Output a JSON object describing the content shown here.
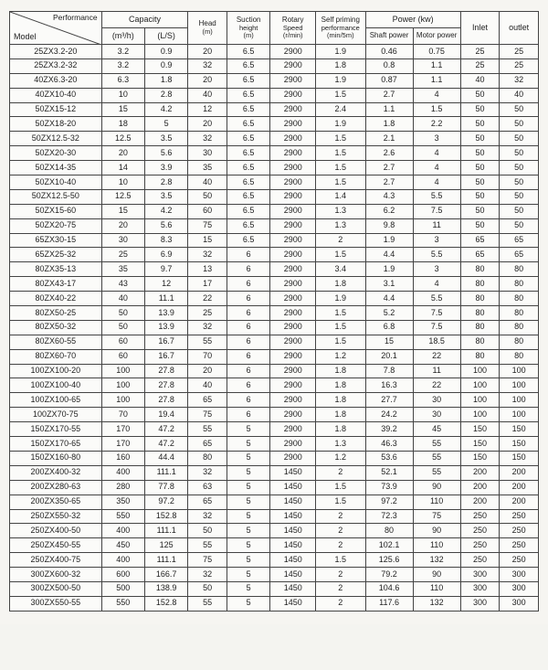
{
  "header": {
    "corner_top": "Performance",
    "corner_bottom": "Model",
    "columns_row1": {
      "capacity": "Capacity",
      "head": "Head",
      "head_unit": "(m)",
      "suction": "Suction",
      "suction_sub": "height",
      "suction_unit": "(m)",
      "rotary": "Rotary",
      "rotary_sub": "Speed",
      "rotary_unit": "(r/min)",
      "self_priming": "Self priming",
      "self_priming_sub": "performance",
      "self_priming_unit": "(min/5m)",
      "power": "Power (kw)",
      "inlet": "Inlet",
      "outlet": "outlet"
    },
    "columns_row2": {
      "cap_m3h": "(m³/h)",
      "cap_ls": "(L/S)",
      "shaft": "Shaft power",
      "motor": "Motor power"
    }
  },
  "rows": [
    {
      "model": "25ZX3.2-20",
      "m3h": "3.2",
      "ls": "0.9",
      "head": "20",
      "suc": "6.5",
      "rot": "2900",
      "self": "1.9",
      "shaft": "0.46",
      "motor": "0.75",
      "in": "25",
      "out": "25"
    },
    {
      "model": "25ZX3.2-32",
      "m3h": "3.2",
      "ls": "0.9",
      "head": "32",
      "suc": "6.5",
      "rot": "2900",
      "self": "1.8",
      "shaft": "0.8",
      "motor": "1.1",
      "in": "25",
      "out": "25"
    },
    {
      "model": "40ZX6.3-20",
      "m3h": "6.3",
      "ls": "1.8",
      "head": "20",
      "suc": "6.5",
      "rot": "2900",
      "self": "1.9",
      "shaft": "0.87",
      "motor": "1.1",
      "in": "40",
      "out": "32"
    },
    {
      "model": "40ZX10-40",
      "m3h": "10",
      "ls": "2.8",
      "head": "40",
      "suc": "6.5",
      "rot": "2900",
      "self": "1.5",
      "shaft": "2.7",
      "motor": "4",
      "in": "50",
      "out": "40"
    },
    {
      "model": "50ZX15-12",
      "m3h": "15",
      "ls": "4.2",
      "head": "12",
      "suc": "6.5",
      "rot": "2900",
      "self": "2.4",
      "shaft": "1.1",
      "motor": "1.5",
      "in": "50",
      "out": "50"
    },
    {
      "model": "50ZX18-20",
      "m3h": "18",
      "ls": "5",
      "head": "20",
      "suc": "6.5",
      "rot": "2900",
      "self": "1.9",
      "shaft": "1.8",
      "motor": "2.2",
      "in": "50",
      "out": "50"
    },
    {
      "model": "50ZX12.5-32",
      "m3h": "12.5",
      "ls": "3.5",
      "head": "32",
      "suc": "6.5",
      "rot": "2900",
      "self": "1.5",
      "shaft": "2.1",
      "motor": "3",
      "in": "50",
      "out": "50"
    },
    {
      "model": "50ZX20-30",
      "m3h": "20",
      "ls": "5.6",
      "head": "30",
      "suc": "6.5",
      "rot": "2900",
      "self": "1.5",
      "shaft": "2.6",
      "motor": "4",
      "in": "50",
      "out": "50"
    },
    {
      "model": "50ZX14-35",
      "m3h": "14",
      "ls": "3.9",
      "head": "35",
      "suc": "6.5",
      "rot": "2900",
      "self": "1.5",
      "shaft": "2.7",
      "motor": "4",
      "in": "50",
      "out": "50"
    },
    {
      "model": "50ZX10-40",
      "m3h": "10",
      "ls": "2.8",
      "head": "40",
      "suc": "6.5",
      "rot": "2900",
      "self": "1.5",
      "shaft": "2.7",
      "motor": "4",
      "in": "50",
      "out": "50"
    },
    {
      "model": "50ZX12.5-50",
      "m3h": "12.5",
      "ls": "3.5",
      "head": "50",
      "suc": "6.5",
      "rot": "2900",
      "self": "1.4",
      "shaft": "4.3",
      "motor": "5.5",
      "in": "50",
      "out": "50"
    },
    {
      "model": "50ZX15-60",
      "m3h": "15",
      "ls": "4.2",
      "head": "60",
      "suc": "6.5",
      "rot": "2900",
      "self": "1.3",
      "shaft": "6.2",
      "motor": "7.5",
      "in": "50",
      "out": "50"
    },
    {
      "model": "50ZX20-75",
      "m3h": "20",
      "ls": "5.6",
      "head": "75",
      "suc": "6.5",
      "rot": "2900",
      "self": "1.3",
      "shaft": "9.8",
      "motor": "11",
      "in": "50",
      "out": "50"
    },
    {
      "model": "65ZX30-15",
      "m3h": "30",
      "ls": "8.3",
      "head": "15",
      "suc": "6.5",
      "rot": "2900",
      "self": "2",
      "shaft": "1.9",
      "motor": "3",
      "in": "65",
      "out": "65"
    },
    {
      "model": "65ZX25-32",
      "m3h": "25",
      "ls": "6.9",
      "head": "32",
      "suc": "6",
      "rot": "2900",
      "self": "1.5",
      "shaft": "4.4",
      "motor": "5.5",
      "in": "65",
      "out": "65"
    },
    {
      "model": "80ZX35-13",
      "m3h": "35",
      "ls": "9.7",
      "head": "13",
      "suc": "6",
      "rot": "2900",
      "self": "3.4",
      "shaft": "1.9",
      "motor": "3",
      "in": "80",
      "out": "80"
    },
    {
      "model": "80ZX43-17",
      "m3h": "43",
      "ls": "12",
      "head": "17",
      "suc": "6",
      "rot": "2900",
      "self": "1.8",
      "shaft": "3.1",
      "motor": "4",
      "in": "80",
      "out": "80"
    },
    {
      "model": "80ZX40-22",
      "m3h": "40",
      "ls": "11.1",
      "head": "22",
      "suc": "6",
      "rot": "2900",
      "self": "1.9",
      "shaft": "4.4",
      "motor": "5.5",
      "in": "80",
      "out": "80"
    },
    {
      "model": "80ZX50-25",
      "m3h": "50",
      "ls": "13.9",
      "head": "25",
      "suc": "6",
      "rot": "2900",
      "self": "1.5",
      "shaft": "5.2",
      "motor": "7.5",
      "in": "80",
      "out": "80"
    },
    {
      "model": "80ZX50-32",
      "m3h": "50",
      "ls": "13.9",
      "head": "32",
      "suc": "6",
      "rot": "2900",
      "self": "1.5",
      "shaft": "6.8",
      "motor": "7.5",
      "in": "80",
      "out": "80"
    },
    {
      "model": "80ZX60-55",
      "m3h": "60",
      "ls": "16.7",
      "head": "55",
      "suc": "6",
      "rot": "2900",
      "self": "1.5",
      "shaft": "15",
      "motor": "18.5",
      "in": "80",
      "out": "80"
    },
    {
      "model": "80ZX60-70",
      "m3h": "60",
      "ls": "16.7",
      "head": "70",
      "suc": "6",
      "rot": "2900",
      "self": "1.2",
      "shaft": "20.1",
      "motor": "22",
      "in": "80",
      "out": "80"
    },
    {
      "model": "100ZX100-20",
      "m3h": "100",
      "ls": "27.8",
      "head": "20",
      "suc": "6",
      "rot": "2900",
      "self": "1.8",
      "shaft": "7.8",
      "motor": "11",
      "in": "100",
      "out": "100"
    },
    {
      "model": "100ZX100-40",
      "m3h": "100",
      "ls": "27.8",
      "head": "40",
      "suc": "6",
      "rot": "2900",
      "self": "1.8",
      "shaft": "16.3",
      "motor": "22",
      "in": "100",
      "out": "100"
    },
    {
      "model": "100ZX100-65",
      "m3h": "100",
      "ls": "27.8",
      "head": "65",
      "suc": "6",
      "rot": "2900",
      "self": "1.8",
      "shaft": "27.7",
      "motor": "30",
      "in": "100",
      "out": "100"
    },
    {
      "model": "100ZX70-75",
      "m3h": "70",
      "ls": "19.4",
      "head": "75",
      "suc": "6",
      "rot": "2900",
      "self": "1.8",
      "shaft": "24.2",
      "motor": "30",
      "in": "100",
      "out": "100"
    },
    {
      "model": "150ZX170-55",
      "m3h": "170",
      "ls": "47.2",
      "head": "55",
      "suc": "5",
      "rot": "2900",
      "self": "1.8",
      "shaft": "39.2",
      "motor": "45",
      "in": "150",
      "out": "150"
    },
    {
      "model": "150ZX170-65",
      "m3h": "170",
      "ls": "47.2",
      "head": "65",
      "suc": "5",
      "rot": "2900",
      "self": "1.3",
      "shaft": "46.3",
      "motor": "55",
      "in": "150",
      "out": "150"
    },
    {
      "model": "150ZX160-80",
      "m3h": "160",
      "ls": "44.4",
      "head": "80",
      "suc": "5",
      "rot": "2900",
      "self": "1.2",
      "shaft": "53.6",
      "motor": "55",
      "in": "150",
      "out": "150"
    },
    {
      "model": "200ZX400-32",
      "m3h": "400",
      "ls": "111.1",
      "head": "32",
      "suc": "5",
      "rot": "1450",
      "self": "2",
      "shaft": "52.1",
      "motor": "55",
      "in": "200",
      "out": "200"
    },
    {
      "model": "200ZX280-63",
      "m3h": "280",
      "ls": "77.8",
      "head": "63",
      "suc": "5",
      "rot": "1450",
      "self": "1.5",
      "shaft": "73.9",
      "motor": "90",
      "in": "200",
      "out": "200"
    },
    {
      "model": "200ZX350-65",
      "m3h": "350",
      "ls": "97.2",
      "head": "65",
      "suc": "5",
      "rot": "1450",
      "self": "1.5",
      "shaft": "97.2",
      "motor": "110",
      "in": "200",
      "out": "200"
    },
    {
      "model": "250ZX550-32",
      "m3h": "550",
      "ls": "152.8",
      "head": "32",
      "suc": "5",
      "rot": "1450",
      "self": "2",
      "shaft": "72.3",
      "motor": "75",
      "in": "250",
      "out": "250"
    },
    {
      "model": "250ZX400-50",
      "m3h": "400",
      "ls": "111.1",
      "head": "50",
      "suc": "5",
      "rot": "1450",
      "self": "2",
      "shaft": "80",
      "motor": "90",
      "in": "250",
      "out": "250"
    },
    {
      "model": "250ZX450-55",
      "m3h": "450",
      "ls": "125",
      "head": "55",
      "suc": "5",
      "rot": "1450",
      "self": "2",
      "shaft": "102.1",
      "motor": "110",
      "in": "250",
      "out": "250"
    },
    {
      "model": "250ZX400-75",
      "m3h": "400",
      "ls": "111.1",
      "head": "75",
      "suc": "5",
      "rot": "1450",
      "self": "1.5",
      "shaft": "125.6",
      "motor": "132",
      "in": "250",
      "out": "250"
    },
    {
      "model": "300ZX600-32",
      "m3h": "600",
      "ls": "166.7",
      "head": "32",
      "suc": "5",
      "rot": "1450",
      "self": "2",
      "shaft": "79.2",
      "motor": "90",
      "in": "300",
      "out": "300"
    },
    {
      "model": "300ZX500-50",
      "m3h": "500",
      "ls": "138.9",
      "head": "50",
      "suc": "5",
      "rot": "1450",
      "self": "2",
      "shaft": "104.6",
      "motor": "110",
      "in": "300",
      "out": "300"
    },
    {
      "model": "300ZX550-55",
      "m3h": "550",
      "ls": "152.8",
      "head": "55",
      "suc": "5",
      "rot": "1450",
      "self": "2",
      "shaft": "117.6",
      "motor": "132",
      "in": "300",
      "out": "300"
    }
  ]
}
